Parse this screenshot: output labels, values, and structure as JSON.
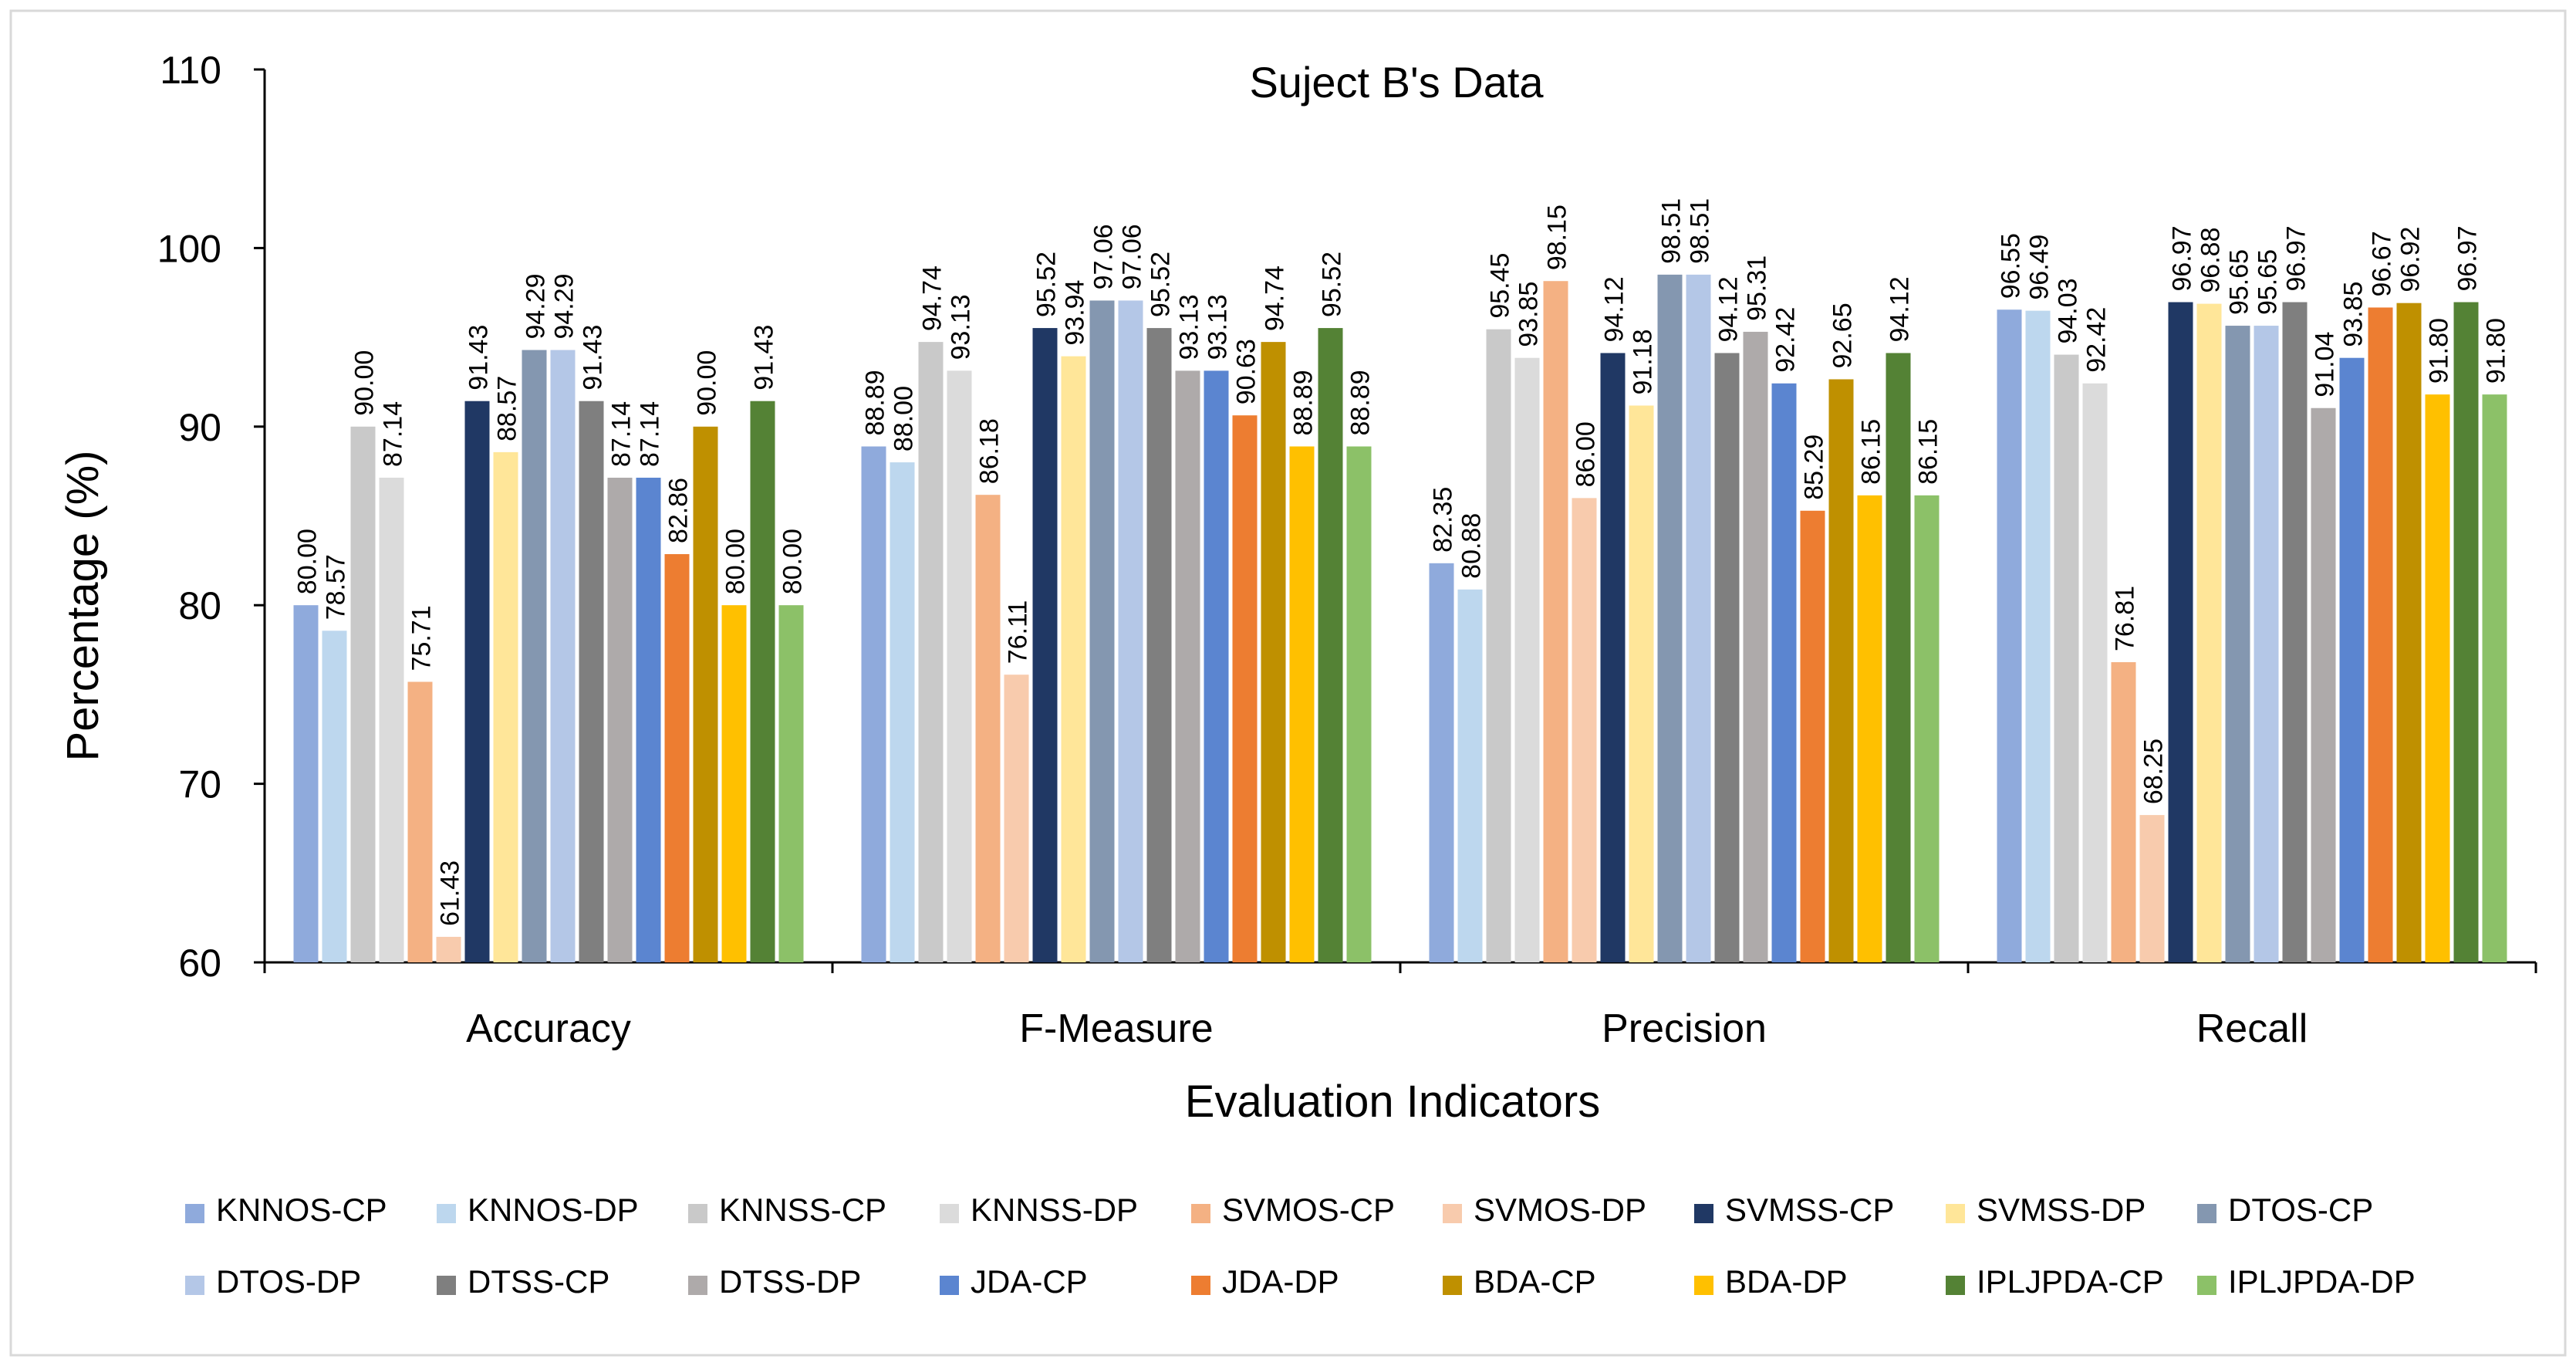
{
  "chart_data": {
    "type": "bar",
    "title": "Suject B's Data",
    "xlabel": "Evaluation Indicators",
    "ylabel": "Percentage (%)",
    "ylim": [
      60,
      110
    ],
    "yticks": [
      "60",
      "70",
      "80",
      "90",
      "100",
      "110"
    ],
    "grid": false,
    "legend_position": "bottom",
    "categories": [
      "Accuracy",
      "F-Measure",
      "Precision",
      "Recall"
    ],
    "series": [
      {
        "name": "KNNOS-CP",
        "color": "#8faadc",
        "values": [
          80.0,
          88.89,
          82.35,
          96.55
        ],
        "labels": [
          "80.00",
          "88.89",
          "82.35",
          "96.55"
        ]
      },
      {
        "name": "KNNOS-DP",
        "color": "#bdd7ee",
        "values": [
          78.57,
          88.0,
          80.88,
          96.49
        ],
        "labels": [
          "78.57",
          "88.00",
          "80.88",
          "96.49"
        ]
      },
      {
        "name": "KNNSS-CP",
        "color": "#c9c9c9",
        "values": [
          90.0,
          94.74,
          95.45,
          94.03
        ],
        "labels": [
          "90.00",
          "94.74",
          "95.45",
          "94.03"
        ]
      },
      {
        "name": "KNNSS-DP",
        "color": "#dbdbdb",
        "values": [
          87.14,
          93.13,
          93.85,
          92.42
        ],
        "labels": [
          "87.14",
          "93.13",
          "93.85",
          "92.42"
        ]
      },
      {
        "name": "SVMOS-CP",
        "color": "#f4b183",
        "values": [
          75.71,
          86.18,
          98.15,
          76.81
        ],
        "labels": [
          "75.71",
          "86.18",
          "98.15",
          "76.81"
        ]
      },
      {
        "name": "SVMOS-DP",
        "color": "#f8cbad",
        "values": [
          61.43,
          76.11,
          86.0,
          68.25
        ],
        "labels": [
          "61.43",
          "76.11",
          "86.00",
          "68.25"
        ]
      },
      {
        "name": "SVMSS-CP",
        "color": "#203864",
        "values": [
          91.43,
          95.52,
          94.12,
          96.97
        ],
        "labels": [
          "91.43",
          "95.52",
          "94.12",
          "96.97"
        ]
      },
      {
        "name": "SVMSS-DP",
        "color": "#ffe699",
        "values": [
          88.57,
          93.94,
          91.18,
          96.88
        ],
        "labels": [
          "88.57",
          "93.94",
          "91.18",
          "96.88"
        ]
      },
      {
        "name": "DTOS-CP",
        "color": "#8497b0",
        "values": [
          94.29,
          97.06,
          98.51,
          95.65
        ],
        "labels": [
          "94.29",
          "97.06",
          "98.51",
          "95.65"
        ]
      },
      {
        "name": "DTOS-DP",
        "color": "#b4c7e7",
        "values": [
          94.29,
          97.06,
          98.51,
          95.65
        ],
        "labels": [
          "94.29",
          "97.06",
          "98.51",
          "95.65"
        ]
      },
      {
        "name": "DTSS-CP",
        "color": "#7f7f7f",
        "values": [
          91.43,
          95.52,
          94.12,
          96.97
        ],
        "labels": [
          "91.43",
          "95.52",
          "94.12",
          "96.97"
        ]
      },
      {
        "name": "DTSS-DP",
        "color": "#aeaaaa",
        "values": [
          87.14,
          93.13,
          95.31,
          91.04
        ],
        "labels": [
          "87.14",
          "93.13",
          "95.31",
          "91.04"
        ]
      },
      {
        "name": "JDA-CP",
        "color": "#5b85d0",
        "values": [
          87.14,
          93.13,
          92.42,
          93.85
        ],
        "labels": [
          "87.14",
          "93.13",
          "92.42",
          "93.85"
        ]
      },
      {
        "name": "JDA-DP",
        "color": "#ed7d31",
        "values": [
          82.86,
          90.63,
          85.29,
          96.67
        ],
        "labels": [
          "82.86",
          "90.63",
          "85.29",
          "96.67"
        ]
      },
      {
        "name": "BDA-CP",
        "color": "#bf9000",
        "values": [
          90.0,
          94.74,
          92.65,
          96.92
        ],
        "labels": [
          "90.00",
          "94.74",
          "92.65",
          "96.92"
        ]
      },
      {
        "name": "BDA-DP",
        "color": "#ffc000",
        "values": [
          80.0,
          88.89,
          86.15,
          91.8
        ],
        "labels": [
          "80.00",
          "88.89",
          "86.15",
          "91.80"
        ]
      },
      {
        "name": "IPLJPDA-CP",
        "color": "#548235",
        "values": [
          91.43,
          95.52,
          94.12,
          96.97
        ],
        "labels": [
          "91.43",
          "95.52",
          "94.12",
          "96.97"
        ]
      },
      {
        "name": "IPLJPDA-DP",
        "color": "#8cc168",
        "values": [
          80.0,
          88.89,
          86.15,
          91.8
        ],
        "labels": [
          "80.00",
          "88.89",
          "86.15",
          "91.80"
        ]
      }
    ]
  }
}
